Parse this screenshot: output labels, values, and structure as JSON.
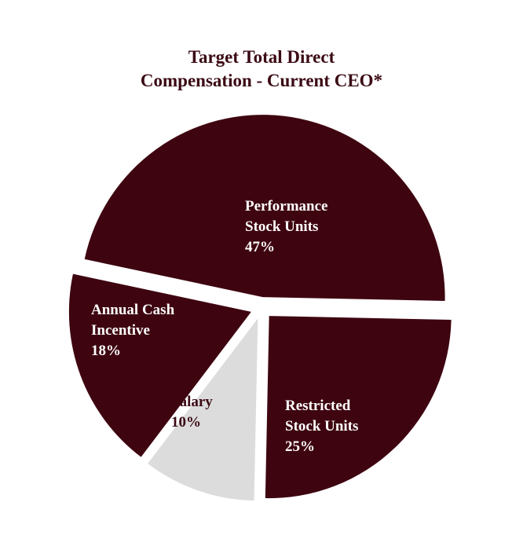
{
  "chart_data": {
    "type": "pie",
    "title_lines": [
      "Target Total Direct",
      "Compensation - Current CEO*"
    ],
    "slices": [
      {
        "label_lines": [
          "Performance",
          "Stock Units",
          "47%"
        ],
        "value": 47,
        "color": "#3e0510",
        "text_color": "#ffffff",
        "exploded": true
      },
      {
        "label_lines": [
          "Restricted",
          "Stock Units",
          "25%"
        ],
        "value": 25,
        "color": "#3e0510",
        "text_color": "#ffffff",
        "exploded": true
      },
      {
        "label_lines": [
          "Salary",
          "10%"
        ],
        "value": 10,
        "color": "#dcdcdc",
        "text_color": "#3b0a14",
        "exploded": true
      },
      {
        "label_lines": [
          "Annual Cash",
          "Incentive",
          "18%"
        ],
        "value": 18,
        "color": "#3e0510",
        "text_color": "#ffffff",
        "exploded": true
      }
    ],
    "title_color": "#3b0a14",
    "legend": "none"
  }
}
